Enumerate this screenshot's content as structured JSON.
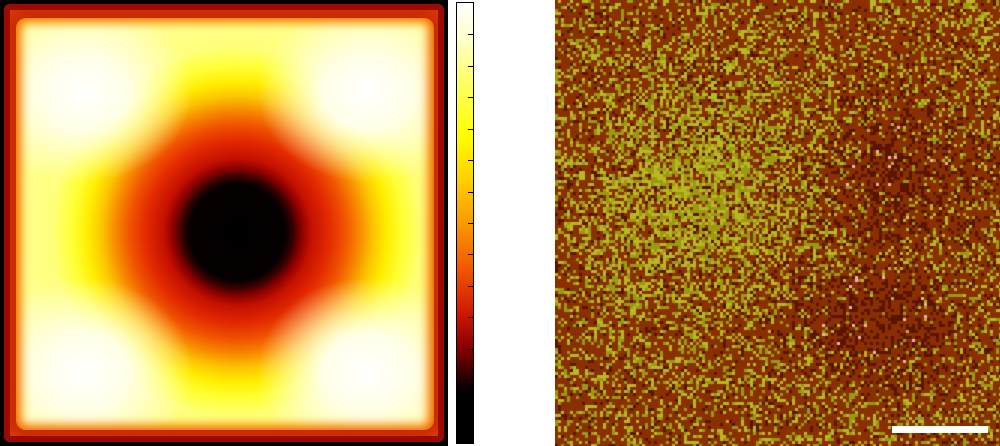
{
  "left_panel": {
    "colormap_stops": [
      "#000000",
      "#3a0000",
      "#8a0000",
      "#d21a00",
      "#f25a00",
      "#fa9a00",
      "#ffd000",
      "#ffff00",
      "#ffff66",
      "#ffffff"
    ]
  },
  "colorbar": {
    "tick_count": 14
  },
  "right_panel": {
    "palette": {
      "dark": "#5a1400",
      "brown": "#8a3000",
      "olive": "#9a9a10",
      "yellow": "#b8b820",
      "pink": "#f0b0b0"
    }
  }
}
